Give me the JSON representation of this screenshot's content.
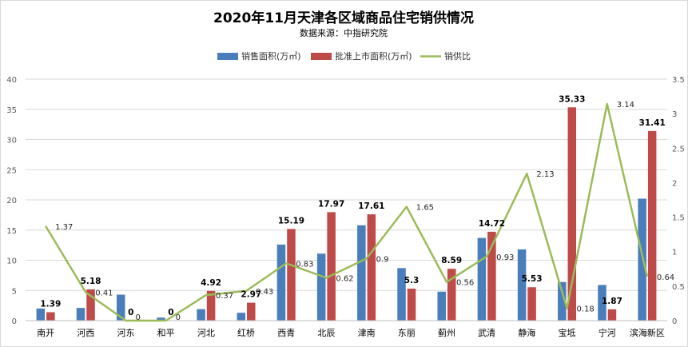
{
  "chart_data": {
    "type": "bar",
    "title": "2020年11月天津各区域商品住宅销供情况",
    "subtitle": "数据来源：中指研究院",
    "categories": [
      "南开",
      "河西",
      "河东",
      "和平",
      "河北",
      "红桥",
      "西青",
      "北辰",
      "津南",
      "东丽",
      "蓟州",
      "武清",
      "静海",
      "宝坻",
      "宁河",
      "滨海新区"
    ],
    "series": [
      {
        "name": "销售面积(万㎡)",
        "kind": "bar",
        "axis": "left",
        "color": "#4a7ebb",
        "values": [
          2.0,
          2.1,
          4.3,
          0.5,
          1.9,
          1.3,
          12.6,
          11.1,
          15.8,
          8.7,
          4.8,
          13.7,
          11.8,
          6.4,
          5.9,
          20.2
        ]
      },
      {
        "name": "批准上市面积(万㎡)",
        "kind": "bar",
        "axis": "left",
        "color": "#be4b48",
        "values": [
          1.39,
          5.18,
          0,
          0,
          4.92,
          2.97,
          15.19,
          17.97,
          17.61,
          5.3,
          8.59,
          14.72,
          5.53,
          35.33,
          1.87,
          31.41
        ]
      },
      {
        "name": "销供比",
        "kind": "line",
        "axis": "right",
        "color": "#9bbb59",
        "values": [
          1.37,
          0.41,
          0,
          0,
          0.37,
          0.43,
          0.83,
          0.62,
          0.9,
          1.65,
          0.56,
          0.93,
          2.13,
          0.18,
          3.14,
          0.64
        ]
      }
    ],
    "bar_labels": [
      "1.39",
      "5.18",
      "0",
      "0",
      "4.92",
      "2.97",
      "15.19",
      "17.97",
      "17.61",
      "5.3",
      "8.59",
      "14.72",
      "5.53",
      "35.33",
      "1.87",
      "31.41"
    ],
    "ratio_labels": [
      "1.37",
      "0.41",
      "0",
      "0",
      "0.37",
      "0.43",
      "0.83",
      "0.62",
      "0.9",
      "1.65",
      "0.56",
      "0.93",
      "2.13",
      "0.18",
      "3.14",
      "0.64"
    ],
    "left_axis": {
      "ylim": [
        0,
        40
      ],
      "ticks": [
        "0",
        "5",
        "10",
        "15",
        "20",
        "25",
        "30",
        "35",
        "40"
      ]
    },
    "right_axis": {
      "ylim": [
        0,
        3.5
      ],
      "ticks": [
        "0",
        "0.5",
        "1",
        "1.5",
        "2",
        "2.5",
        "3",
        "3.5"
      ]
    },
    "grid": true,
    "legend": "top-center"
  }
}
